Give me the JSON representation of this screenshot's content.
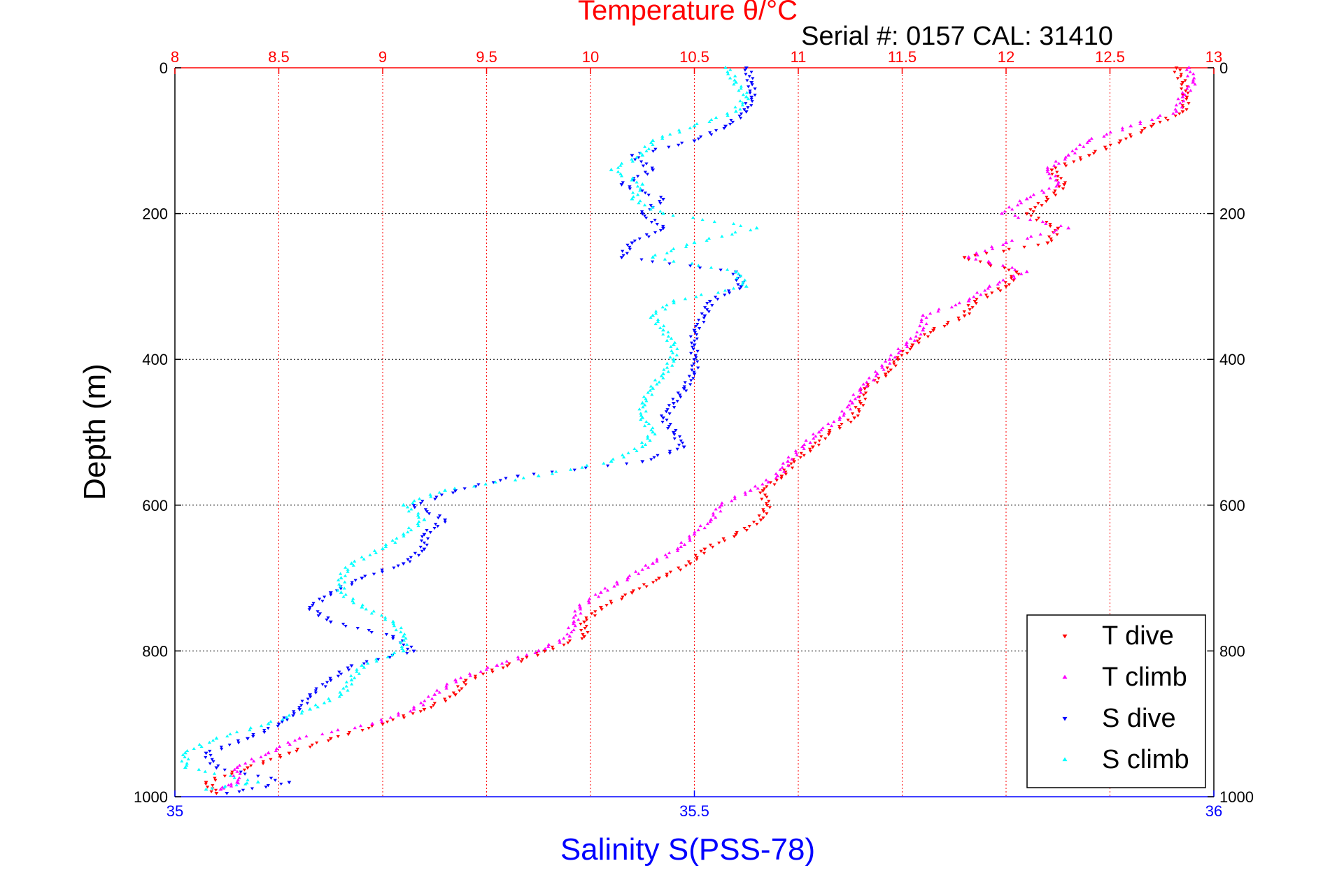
{
  "chart_data": {
    "type": "scatter",
    "title": "Temperature θ/°C",
    "subtitle": "Serial #: 0157  CAL: 31410",
    "ylabel": "Depth (m)",
    "xlabel": "Salinity S(PSS-78)",
    "top_axis": {
      "label": "Temperature θ/°C",
      "range": [
        8,
        13
      ],
      "ticks": [
        "8",
        "8.5",
        "9",
        "9.5",
        "10",
        "10.5",
        "11",
        "11.5",
        "12",
        "12.5",
        "13"
      ]
    },
    "bottom_axis": {
      "label": "Salinity S(PSS-78)",
      "range": [
        35,
        36
      ],
      "ticks": [
        "35",
        "35.5",
        "36"
      ]
    },
    "y_axis": {
      "range": [
        0,
        1000
      ],
      "reversed": true,
      "ticks": [
        "0",
        "200",
        "400",
        "600",
        "800",
        "1000"
      ]
    },
    "grid": true,
    "legend_position": "bottom-right",
    "colors": {
      "temperature_axis": "#ff0000",
      "salinity_axis": "#0000ff"
    },
    "series": [
      {
        "name": "T dive",
        "axis": "temperature",
        "color": "#ff0000",
        "marker": "triangle-down",
        "depth": [
          0,
          20,
          40,
          60,
          80,
          100,
          120,
          140,
          160,
          180,
          200,
          220,
          240,
          260,
          280,
          300,
          320,
          340,
          360,
          380,
          400,
          420,
          440,
          460,
          480,
          500,
          520,
          540,
          560,
          580,
          600,
          620,
          640,
          660,
          680,
          700,
          720,
          740,
          760,
          780,
          800,
          820,
          840,
          860,
          880,
          900,
          920,
          940,
          960,
          980,
          995
        ],
        "values": [
          12.82,
          12.85,
          12.87,
          12.85,
          12.7,
          12.55,
          12.4,
          12.22,
          12.28,
          12.2,
          12.1,
          12.25,
          12.2,
          11.8,
          12.05,
          12.0,
          11.85,
          11.8,
          11.65,
          11.55,
          11.48,
          11.42,
          11.32,
          11.3,
          11.27,
          11.15,
          11.07,
          10.98,
          10.92,
          10.83,
          10.85,
          10.82,
          10.7,
          10.55,
          10.48,
          10.33,
          10.2,
          10.05,
          9.97,
          9.97,
          9.78,
          9.6,
          9.4,
          9.35,
          9.2,
          9.0,
          8.75,
          8.55,
          8.35,
          8.15,
          8.2
        ]
      },
      {
        "name": "T climb",
        "axis": "temperature",
        "color": "#ff00ff",
        "marker": "triangle-up",
        "depth": [
          0,
          20,
          40,
          60,
          80,
          100,
          120,
          140,
          160,
          180,
          200,
          220,
          240,
          260,
          280,
          300,
          320,
          340,
          360,
          380,
          400,
          420,
          440,
          460,
          480,
          500,
          520,
          540,
          560,
          580,
          600,
          620,
          640,
          660,
          680,
          700,
          720,
          740,
          760,
          780,
          800,
          820,
          840,
          860,
          880,
          900,
          920,
          940,
          960,
          980,
          990
        ],
        "values": [
          12.88,
          12.9,
          12.85,
          12.82,
          12.6,
          12.4,
          12.3,
          12.2,
          12.25,
          12.1,
          11.98,
          12.3,
          12.0,
          11.82,
          12.1,
          11.92,
          11.82,
          11.6,
          11.6,
          11.52,
          11.44,
          11.38,
          11.3,
          11.26,
          11.2,
          11.1,
          11.02,
          10.95,
          10.9,
          10.77,
          10.63,
          10.58,
          10.5,
          10.42,
          10.3,
          10.18,
          10.05,
          9.95,
          9.92,
          9.9,
          9.75,
          9.55,
          9.35,
          9.25,
          9.15,
          8.95,
          8.6,
          8.45,
          8.3,
          8.3,
          8.22
        ]
      },
      {
        "name": "S dive",
        "axis": "salinity",
        "color": "#0000ff",
        "marker": "triangle-down",
        "depth": [
          0,
          20,
          40,
          60,
          80,
          100,
          120,
          140,
          160,
          180,
          200,
          220,
          240,
          260,
          280,
          300,
          320,
          340,
          360,
          380,
          400,
          420,
          440,
          460,
          480,
          500,
          520,
          540,
          560,
          580,
          600,
          620,
          640,
          660,
          680,
          700,
          720,
          740,
          760,
          780,
          800,
          820,
          840,
          860,
          880,
          900,
          920,
          940,
          960,
          980,
          995
        ],
        "values": [
          35.55,
          35.555,
          35.555,
          35.55,
          35.53,
          35.5,
          35.44,
          35.46,
          35.43,
          35.47,
          35.45,
          35.47,
          35.44,
          35.43,
          35.54,
          35.545,
          35.515,
          35.51,
          35.5,
          35.5,
          35.5,
          35.5,
          35.49,
          35.48,
          35.47,
          35.48,
          35.49,
          35.45,
          35.33,
          35.27,
          35.23,
          35.26,
          35.24,
          35.24,
          35.22,
          35.18,
          35.15,
          35.13,
          35.15,
          35.21,
          35.23,
          35.17,
          35.15,
          35.13,
          35.12,
          35.1,
          35.07,
          35.03,
          35.04,
          35.11,
          35.05
        ]
      },
      {
        "name": "S climb",
        "axis": "salinity",
        "color": "#00ffff",
        "marker": "triangle-up",
        "depth": [
          0,
          20,
          40,
          60,
          80,
          100,
          120,
          140,
          160,
          180,
          200,
          220,
          240,
          260,
          280,
          300,
          320,
          340,
          360,
          380,
          400,
          420,
          440,
          460,
          480,
          500,
          520,
          540,
          560,
          580,
          600,
          620,
          640,
          660,
          680,
          700,
          720,
          740,
          760,
          780,
          800,
          820,
          840,
          860,
          880,
          900,
          920,
          940,
          960,
          980,
          990
        ],
        "values": [
          35.53,
          35.54,
          35.55,
          35.54,
          35.5,
          35.46,
          35.45,
          35.42,
          35.45,
          35.44,
          35.47,
          35.56,
          35.5,
          35.46,
          35.54,
          35.55,
          35.48,
          35.46,
          35.47,
          35.48,
          35.48,
          35.47,
          35.46,
          35.45,
          35.45,
          35.46,
          35.45,
          35.42,
          35.35,
          35.26,
          35.22,
          35.24,
          35.22,
          35.2,
          35.17,
          35.16,
          35.16,
          35.18,
          35.21,
          35.22,
          35.22,
          35.18,
          35.17,
          35.16,
          35.13,
          35.09,
          35.04,
          35.01,
          35.01,
          35.08,
          35.03
        ]
      }
    ]
  }
}
